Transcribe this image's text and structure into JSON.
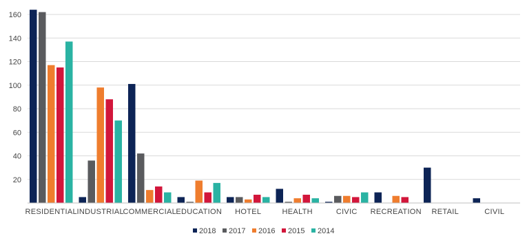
{
  "chart_data": {
    "type": "bar",
    "title": "",
    "xlabel": "",
    "ylabel": "",
    "ylim": [
      0,
      165
    ],
    "yticks": [
      20,
      40,
      60,
      80,
      100,
      120,
      140,
      160
    ],
    "grid": true,
    "legend_position": "bottom",
    "categories": [
      "RESIDENTIAL",
      "INDUSTRIAL",
      "COMMERCIAL",
      "EDUCATION",
      "HOTEL",
      "HEALTH",
      "CIVIC",
      "RECREATION",
      "RETAIL",
      "CIVIL"
    ],
    "series": [
      {
        "name": "2018",
        "color": "#0d2456",
        "values": [
          164,
          5,
          101,
          5,
          5,
          12,
          1,
          9,
          30,
          4
        ]
      },
      {
        "name": "2017",
        "color": "#5a5b5e",
        "values": [
          162,
          36,
          42,
          1,
          5,
          1,
          6,
          0,
          0,
          0
        ]
      },
      {
        "name": "2016",
        "color": "#ef7d2e",
        "values": [
          117,
          98,
          11,
          19,
          3,
          4,
          6,
          6,
          0,
          0
        ]
      },
      {
        "name": "2015",
        "color": "#d2163b",
        "values": [
          115,
          88,
          14,
          9,
          7,
          7,
          5,
          5,
          0,
          0
        ]
      },
      {
        "name": "2014",
        "color": "#2ab3a3",
        "values": [
          137,
          70,
          9,
          17,
          5,
          4,
          9,
          0,
          0,
          0
        ]
      }
    ]
  }
}
